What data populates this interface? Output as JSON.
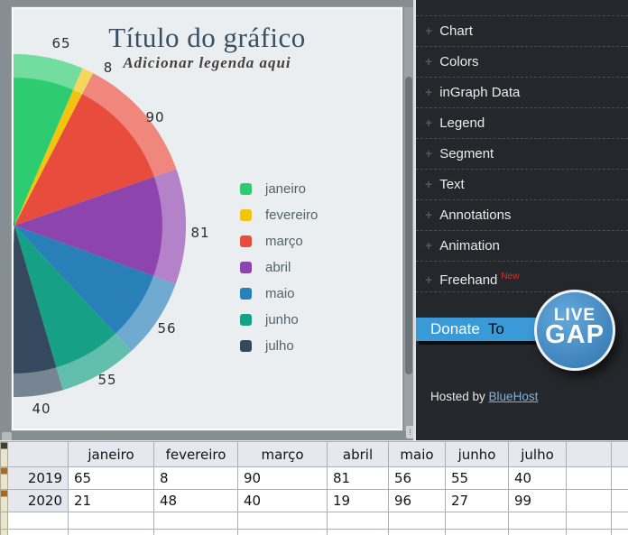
{
  "chart_data": {
    "type": "pie",
    "title": "Título do gráfico",
    "subtitle": "Adicionar legenda aqui",
    "categories": [
      "janeiro",
      "fevereiro",
      "março",
      "abril",
      "maio",
      "junho",
      "julho"
    ],
    "series": [
      {
        "name": "2019",
        "values": [
          65,
          8,
          90,
          81,
          56,
          55,
          40
        ]
      },
      {
        "name": "2020",
        "values": [
          21,
          48,
          40,
          19,
          96,
          27,
          99
        ]
      }
    ],
    "slice_labels_visible": [
      "65",
      "8",
      "90",
      "81",
      "56",
      "55",
      "40"
    ],
    "colors": [
      "#2ecc71",
      "#f1c40f",
      "#e74c3c",
      "#8e44ad",
      "#2980b9",
      "#16a085",
      "#34495e"
    ],
    "legend_position": "right",
    "start_angle_deg": -8
  },
  "sidebar": {
    "menu": [
      {
        "label": "Chart"
      },
      {
        "label": "Colors"
      },
      {
        "label": "inGraph Data"
      },
      {
        "label": "Legend"
      },
      {
        "label": "Segment"
      },
      {
        "label": "Text"
      },
      {
        "label": "Annotations"
      },
      {
        "label": "Animation"
      },
      {
        "label": "Freehand",
        "badge": "New"
      }
    ],
    "donate": {
      "word1": "Donate",
      "word2": "To"
    },
    "logo": {
      "line1": "LIVE",
      "line2": "GAP"
    },
    "hosted": {
      "prefix": "Hosted by ",
      "link": "BlueHost"
    }
  },
  "spreadsheet": {
    "columns": [
      "janeiro",
      "fevereiro",
      "março",
      "abril",
      "maio",
      "junho",
      "julho"
    ],
    "rows": [
      {
        "label": "2019",
        "values": [
          "65",
          "8",
          "90",
          "81",
          "56",
          "55",
          "40"
        ]
      },
      {
        "label": "2020",
        "values": [
          "21",
          "48",
          "40",
          "19",
          "96",
          "27",
          "99"
        ]
      }
    ]
  }
}
